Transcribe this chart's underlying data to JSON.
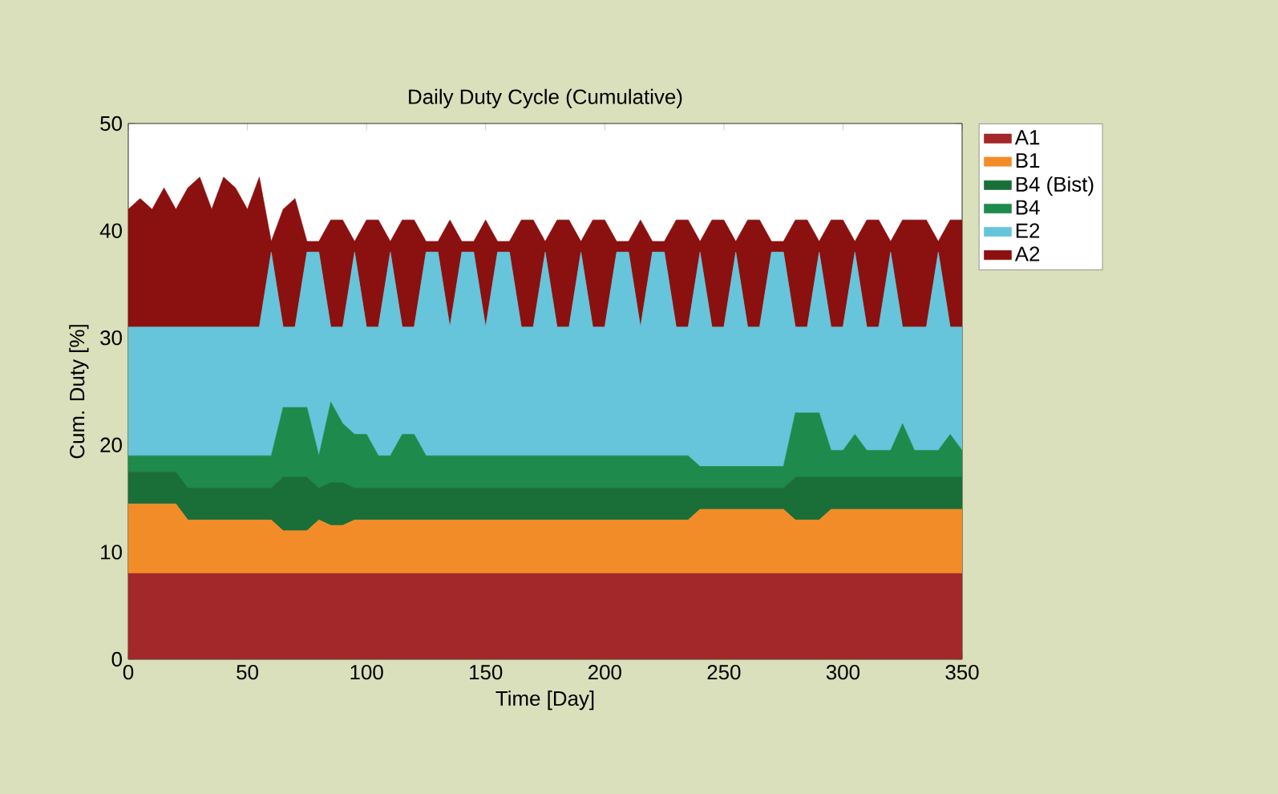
{
  "chart_data": {
    "type": "area",
    "stacked": true,
    "title": "Daily Duty Cycle (Cumulative)",
    "xlabel": "Time [Day]",
    "ylabel": "Cum. Duty [%]",
    "x": [
      0,
      5,
      10,
      15,
      20,
      25,
      30,
      35,
      40,
      45,
      50,
      55,
      60,
      65,
      70,
      75,
      80,
      85,
      90,
      95,
      100,
      105,
      110,
      115,
      120,
      125,
      130,
      135,
      140,
      145,
      150,
      155,
      160,
      165,
      170,
      175,
      180,
      185,
      190,
      195,
      200,
      205,
      210,
      215,
      220,
      225,
      230,
      235,
      240,
      245,
      250,
      255,
      260,
      265,
      270,
      275,
      280,
      285,
      290,
      295,
      300,
      305,
      310,
      315,
      320,
      325,
      330,
      335,
      340,
      345,
      350
    ],
    "xlim": [
      0,
      350
    ],
    "xticks": [
      0,
      50,
      100,
      150,
      200,
      250,
      300,
      350
    ],
    "ylim": [
      0,
      50
    ],
    "yticks": [
      0,
      10,
      20,
      30,
      40,
      50
    ],
    "grid": false,
    "legend": "top right",
    "series": [
      {
        "name": "A1",
        "color": "#a3282a",
        "values": [
          8,
          8,
          8,
          8,
          8,
          8,
          8,
          8,
          8,
          8,
          8,
          8,
          8,
          8,
          8,
          8,
          8,
          8,
          8,
          8,
          8,
          8,
          8,
          8,
          8,
          8,
          8,
          8,
          8,
          8,
          8,
          8,
          8,
          8,
          8,
          8,
          8,
          8,
          8,
          8,
          8,
          8,
          8,
          8,
          8,
          8,
          8,
          8,
          8,
          8,
          8,
          8,
          8,
          8,
          8,
          8,
          8,
          8,
          8,
          8,
          8,
          8,
          8,
          8,
          8,
          8,
          8,
          8,
          8,
          8,
          8
        ]
      },
      {
        "name": "B1",
        "color": "#f28c28",
        "values": [
          6.5,
          6.5,
          6.5,
          6.5,
          6.5,
          5,
          5,
          5,
          5,
          5,
          5,
          5,
          5,
          4,
          4,
          4,
          5,
          4.5,
          4.5,
          5,
          5,
          5,
          5,
          5,
          5,
          5,
          5,
          5,
          5,
          5,
          5,
          5,
          5,
          5,
          5,
          5,
          5,
          5,
          5,
          5,
          5,
          5,
          5,
          5,
          5,
          5,
          5,
          5,
          6,
          6,
          6,
          6,
          6,
          6,
          6,
          6,
          5,
          5,
          5,
          6,
          6,
          6,
          6,
          6,
          6,
          6,
          6,
          6,
          6,
          6,
          6
        ]
      },
      {
        "name": "B4 (Bist)",
        "color": "#1a6e38",
        "values": [
          3,
          3,
          3,
          3,
          3,
          3,
          3,
          3,
          3,
          3,
          3,
          3,
          3,
          5,
          5,
          5,
          3,
          4,
          4,
          3,
          3,
          3,
          3,
          3,
          3,
          3,
          3,
          3,
          3,
          3,
          3,
          3,
          3,
          3,
          3,
          3,
          3,
          3,
          3,
          3,
          3,
          3,
          3,
          3,
          3,
          3,
          3,
          3,
          2,
          2,
          2,
          2,
          2,
          2,
          2,
          2,
          4,
          4,
          4,
          3,
          3,
          3,
          3,
          3,
          3,
          3,
          3,
          3,
          3,
          3,
          3
        ]
      },
      {
        "name": "B4",
        "color": "#1e8a4c",
        "values": [
          1.5,
          1.5,
          1.5,
          1.5,
          1.5,
          3,
          3,
          3,
          3,
          3,
          3,
          3,
          3,
          6.5,
          6.5,
          6.5,
          3,
          7.5,
          5.5,
          5,
          5,
          3,
          3,
          5,
          5,
          3,
          3,
          3,
          3,
          3,
          3,
          3,
          3,
          3,
          3,
          3,
          3,
          3,
          3,
          3,
          3,
          3,
          3,
          3,
          3,
          3,
          3,
          3,
          2,
          2,
          2,
          2,
          2,
          2,
          2,
          2,
          6,
          6,
          6,
          2.5,
          2.5,
          4,
          2.5,
          2.5,
          2.5,
          5,
          2.5,
          2.5,
          2.5,
          4,
          2.5
        ]
      },
      {
        "name": "E2",
        "color": "#66c5da",
        "values": [
          12,
          12,
          12,
          12,
          12,
          12,
          12,
          12,
          12,
          12,
          12,
          12,
          19,
          7.5,
          7.5,
          14.5,
          19,
          7,
          9,
          17,
          10,
          12,
          19,
          10,
          10,
          19,
          19,
          12,
          19,
          19,
          12,
          19,
          19,
          12,
          12,
          19,
          12,
          12,
          19,
          12,
          12,
          19,
          19,
          12,
          19,
          19,
          12,
          12,
          20,
          13,
          13,
          20,
          13,
          13,
          20,
          20,
          8,
          8,
          15,
          11.5,
          11.5,
          17,
          11.5,
          11.5,
          18.5,
          9,
          11.5,
          11.5,
          18.5,
          10,
          11.5
        ]
      },
      {
        "name": "A2",
        "color": "#8b1010",
        "values": [
          11,
          12,
          11,
          13,
          11,
          13,
          14,
          11,
          14,
          13,
          11,
          14,
          1,
          11,
          12,
          1,
          1,
          10,
          10,
          1,
          10,
          10,
          1,
          10,
          10,
          1,
          1,
          10,
          1,
          1,
          10,
          1,
          1,
          10,
          10,
          1,
          10,
          10,
          1,
          10,
          10,
          1,
          1,
          10,
          1,
          1,
          10,
          10,
          1,
          10,
          10,
          1,
          10,
          10,
          1,
          1,
          10,
          10,
          1,
          10,
          10,
          1,
          10,
          10,
          1,
          10,
          10,
          10,
          1,
          10,
          10
        ]
      }
    ]
  }
}
